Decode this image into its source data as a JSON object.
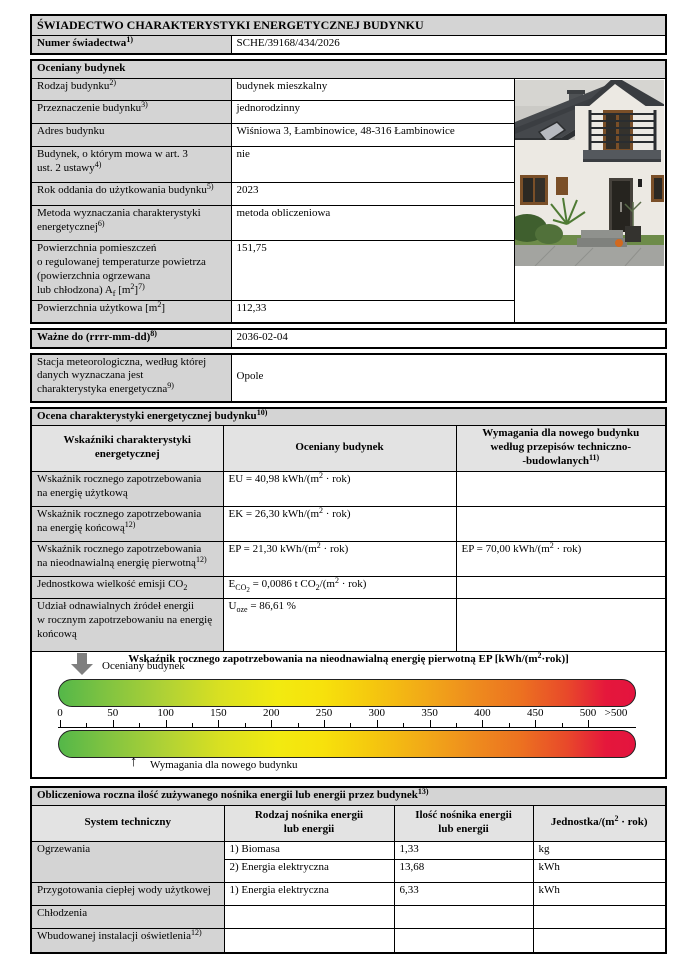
{
  "title": "ŚWIADECTWO CHARAKTERYSTYKI ENERGETYCZNEJ BUDYNKU",
  "certificate": {
    "label_html": "Numer świadectwa<sup>1)</sup>",
    "value": "SCHE/39168/434/2026"
  },
  "building": {
    "header": "Oceniany budynek",
    "photo_name": "zdjęcie budynku",
    "rows": [
      {
        "label_html": "Rodzaj budynku<sup>2)</sup>",
        "value": "budynek mieszkalny"
      },
      {
        "label_html": "Przeznaczenie budynku<sup>3)</sup>",
        "value": "jednorodzinny"
      },
      {
        "label_html": "Adres budynku",
        "value": "Wiśniowa 3, Łambinowice, 48-316 Łambinowice"
      },
      {
        "label_html": "Budynek, o którym mowa w art. 3<br>ust. 2 ustawy<sup>4)</sup>",
        "value": "nie"
      },
      {
        "label_html": "Rok oddania do użytkowania budynku<sup>5)</sup>",
        "value": "2023"
      },
      {
        "label_html": "Metoda wyznaczania charakterystyki<br>energetycznej<sup>6)</sup>",
        "value": "metoda obliczeniowa"
      },
      {
        "label_html": "Powierzchnia pomieszczeń<br>o regulowanej temperaturze powietrza<br>(powierzchnia ogrzewana<br>lub chłodzona) A<sub>f</sub> [m<sup>2</sup>]<sup>7)</sup>",
        "value": "151,75"
      },
      {
        "label_html": "Powierzchnia użytkowa [m<sup>2</sup>]",
        "value": "112,33"
      }
    ]
  },
  "valid_until": {
    "label_html": "Ważne do (rrrr-mm-dd)<sup>8)</sup>",
    "value": "2036-02-04"
  },
  "weather_station": {
    "label_html": "Stacja meteorologiczna, według której<br>danych wyznaczana jest<br>charakterystyka energetyczna<sup>9)</sup>",
    "value": "Opole"
  },
  "assessment": {
    "header_html": "Ocena charakterystyki energetycznej budynku<sup>10)</sup>",
    "col_headers_html": [
      "Wskaźniki charakterystyki<br>energetycznej",
      "Oceniany budynek",
      "Wymagania dla nowego budynku<br>według przepisów techniczno-<br>-budowlanych<sup>11)</sup>"
    ],
    "rows": [
      {
        "label_html": "Wskaźnik rocznego zapotrzebowania<br>na energię użytkową",
        "value_html": "EU = 40,98 kWh/(m<sup>2</sup> · rok)",
        "requirement_html": ""
      },
      {
        "label_html": "Wskaźnik rocznego zapotrzebowania<br>na energię końcową<sup>12)</sup>",
        "value_html": "EK = 26,30 kWh/(m<sup>2</sup> · rok)",
        "requirement_html": ""
      },
      {
        "label_html": "Wskaźnik rocznego zapotrzebowania<br>na nieodnawialną energię pierwotną<sup>12)</sup>",
        "value_html": "EP = 21,30 kWh/(m<sup>2</sup> · rok)",
        "requirement_html": "EP = 70,00 kWh/(m<sup>2</sup> · rok)"
      },
      {
        "label_html": "Jednostkowa wielkość emisji CO<sub>2</sub>",
        "value_html": "E<sub>CO<sub>2</sub></sub> = 0,0086 t CO<sub>2</sub>/(m<sup>2</sup> · rok)",
        "requirement_html": ""
      },
      {
        "label_html": "Udział odnawialnych źródeł energii<br>w rocznym zapotrzebowaniu na energię<br>końcową",
        "value_html": "U<sub>oze</sub> = 86,61 %",
        "requirement_html": ""
      }
    ]
  },
  "chart": {
    "type": "scale",
    "title_html": "Wskaźnik rocznego zapotrzebowania na nieodnawialną energię pierwotną EP [kWh/(m<sup>2</sup>·rok)]",
    "ticks": [
      "0",
      "50",
      "100",
      "150",
      "200",
      "250",
      "300",
      "350",
      "400",
      "450",
      "500"
    ],
    "overflow_label": ">500",
    "axis_min": 0,
    "axis_max": 500,
    "building_ep": 21.3,
    "requirement_ep": 70.0,
    "marker_top_label": "Oceniany budynek",
    "marker_bottom_label": "Wymagania dla nowego budynku",
    "marker_top_color": "#7f7f7f",
    "gradient_colors": [
      "#54b749",
      "#f2ea10",
      "#ee8c1e",
      "#e3143e"
    ]
  },
  "consumption": {
    "header_html": "Obliczeniowa roczna ilość zużywanego nośnika energii lub energii przez budynek<sup>13)</sup>",
    "col_headers_html": [
      "System techniczny",
      "Rodzaj nośnika energii<br>lub energii",
      "Ilość nośnika energii<br>lub energii",
      "Jednostka/(m<sup>2</sup> · rok)"
    ],
    "rows": [
      {
        "system_html": "Ogrzewania",
        "carrier": "1) Biomasa",
        "amount": "1,33",
        "unit": "kg"
      },
      {
        "system_html": "",
        "carrier": "2) Energia elektryczna",
        "amount": "13,68",
        "unit": "kWh"
      },
      {
        "system_html": "Przygotowania ciepłej wody użytkowej",
        "carrier": "1) Energia elektryczna",
        "amount": "6,33",
        "unit": "kWh"
      },
      {
        "system_html": "Chłodzenia",
        "carrier": "",
        "amount": "",
        "unit": ""
      },
      {
        "system_html": "Wbudowanej instalacji oświetlenia<sup>12)</sup>",
        "carrier": "",
        "amount": "",
        "unit": ""
      }
    ]
  }
}
